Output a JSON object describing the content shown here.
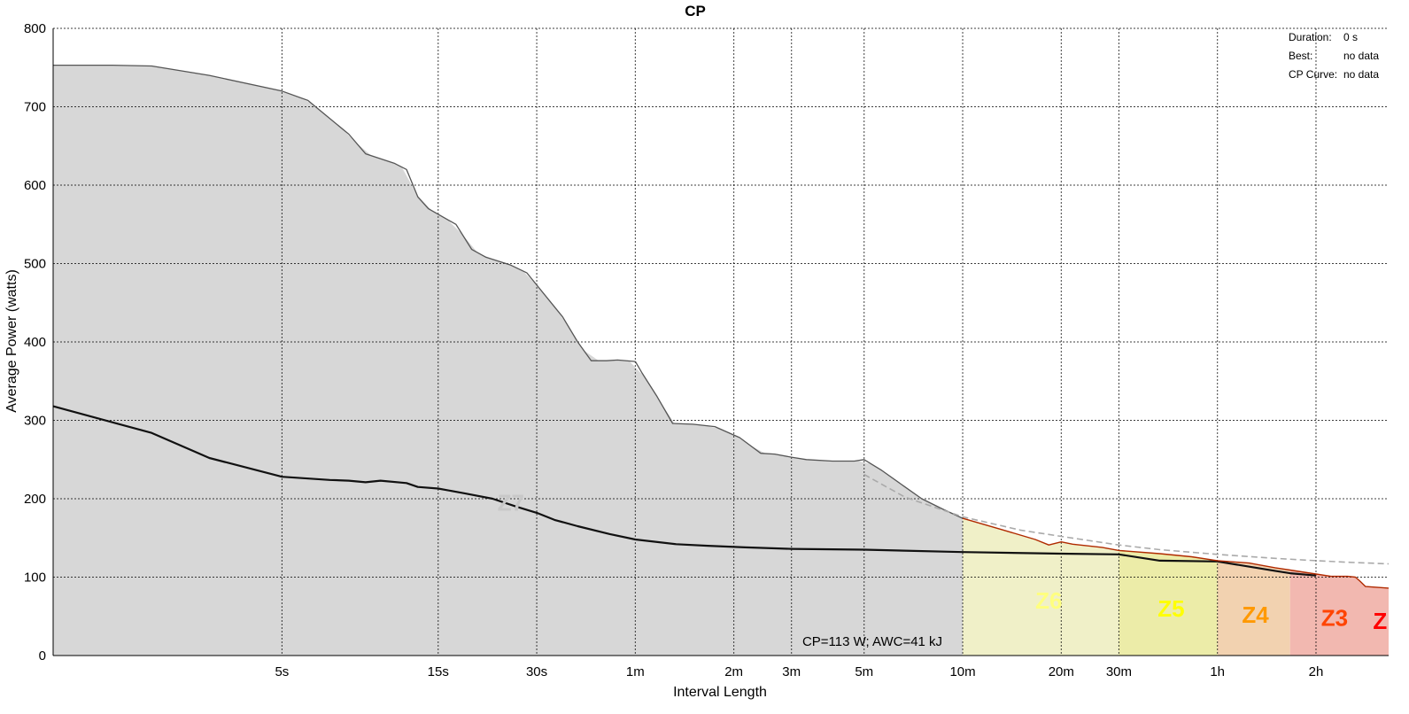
{
  "chart_data": {
    "type": "line",
    "title": "CP",
    "xlabel": "Interval Length",
    "ylabel": "Average Power (watts)",
    "x_scale": "log",
    "x_unit": "seconds",
    "xlim": [
      1,
      12000
    ],
    "ylim": [
      0,
      800
    ],
    "grid": true,
    "yticks": [
      0,
      100,
      200,
      300,
      400,
      500,
      600,
      700,
      800
    ],
    "xticks": [
      {
        "value": 5,
        "label": "5s"
      },
      {
        "value": 15,
        "label": "15s"
      },
      {
        "value": 30,
        "label": "30s"
      },
      {
        "value": 60,
        "label": "1m"
      },
      {
        "value": 120,
        "label": "2m"
      },
      {
        "value": 180,
        "label": "3m"
      },
      {
        "value": 300,
        "label": "5m"
      },
      {
        "value": 600,
        "label": "10m"
      },
      {
        "value": 1200,
        "label": "20m"
      },
      {
        "value": 1800,
        "label": "30m"
      },
      {
        "value": 3600,
        "label": "1h"
      },
      {
        "value": 7200,
        "label": "2h"
      }
    ],
    "series": [
      {
        "color": "#555555",
        "fill": "#dcdcdc",
        "x": [
          1,
          1.5,
          2,
          3,
          5,
          6,
          8,
          9,
          11,
          12,
          13,
          14,
          17,
          19,
          21,
          25,
          28,
          36,
          40,
          44,
          49,
          53,
          60,
          63,
          70,
          78,
          90,
          105,
          125,
          145,
          160,
          180,
          200,
          240,
          280,
          300,
          340,
          400,
          450,
          520,
          600
        ],
        "values": [
          753,
          753,
          752,
          740,
          720,
          708,
          665,
          640,
          628,
          620,
          585,
          570,
          550,
          518,
          508,
          498,
          488,
          432,
          400,
          376,
          376,
          377,
          375,
          360,
          330,
          296,
          295,
          292,
          278,
          258,
          257,
          253,
          250,
          248,
          248,
          250,
          236,
          215,
          200,
          187,
          175
        ]
      },
      {
        "color": "#111111",
        "x": [
          1,
          2,
          3,
          5,
          7,
          8,
          9,
          10,
          12,
          13,
          15,
          18,
          22,
          26,
          30,
          34,
          40,
          50,
          60,
          80,
          100,
          130,
          180,
          300,
          600,
          1200,
          1800,
          2400,
          3600,
          5400,
          6000,
          7200
        ],
        "values": [
          318,
          284,
          252,
          228,
          224,
          223,
          221,
          223,
          220,
          215,
          213,
          207,
          200,
          190,
          182,
          173,
          165,
          155,
          148,
          142,
          140,
          138,
          136,
          135,
          132,
          130,
          129,
          121,
          120,
          108,
          105,
          102
        ]
      },
      {
        "color": "#aaaaaa",
        "x": [
          300,
          400,
          600,
          900,
          1200,
          1800,
          2400,
          3600,
          5400,
          7200,
          9000,
          12000
        ],
        "values": [
          231,
          202,
          177,
          160,
          152,
          141,
          135,
          129,
          124,
          121,
          119,
          117
        ]
      },
      {
        "color": "#b02a00",
        "x": [
          600,
          800,
          1000,
          1100,
          1200,
          1300,
          1600,
          1800,
          2400,
          3000,
          3600,
          4500,
          5400,
          6000,
          7200,
          8000,
          9000,
          9500,
          9800,
          10200,
          12000
        ],
        "values": [
          175,
          160,
          148,
          141,
          145,
          142,
          138,
          134,
          130,
          126,
          121,
          118,
          112,
          109,
          104,
          101,
          101,
          100,
          95,
          88,
          86
        ]
      }
    ],
    "zones": [
      {
        "label": "Z7",
        "x_start": 1,
        "x_end": 600,
        "color": "#c8c8c8",
        "fill": "#d7d7d7",
        "label_x": 25,
        "label_y": 185
      },
      {
        "label": "Z6",
        "x_start": 600,
        "x_end": 1800,
        "color": "#ffff7f",
        "fill": "#f0f0c8",
        "label_x": 1100,
        "label_y": 60
      },
      {
        "label": "Z5",
        "x_start": 1800,
        "x_end": 3600,
        "color": "#ffff00",
        "fill": "#ececa8",
        "label_x": 2600,
        "label_y": 50
      },
      {
        "label": "Z4",
        "x_start": 3600,
        "x_end": 6000,
        "color": "#ff9900",
        "fill": "#f2d2b0",
        "label_x": 4700,
        "label_y": 42
      },
      {
        "label": "Z3",
        "x_start": 6000,
        "x_end": 12000,
        "color": "#ff4400",
        "fill": "#f2b8b0",
        "label_x": 8200,
        "label_y": 38
      },
      {
        "label": "Z",
        "x_start": 10800,
        "x_end": 12000,
        "color": "#ff0000",
        "fill": "#f2b8b0",
        "label_x": 11300,
        "label_y": 34
      }
    ],
    "annotation": "CP=113 W; AWC=41 kJ",
    "annotation_position": "bottom-center",
    "legend": {
      "placement": "top-right",
      "items": [
        {
          "label": "Duration:",
          "value": "0 s"
        },
        {
          "label": "Best:",
          "value": "no data"
        },
        {
          "label": "CP Curve:",
          "value": "no data"
        }
      ]
    }
  }
}
